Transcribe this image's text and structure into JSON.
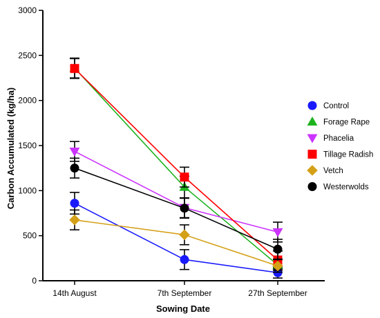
{
  "chart_data": {
    "type": "line",
    "title": "",
    "xlabel": "Sowing Date",
    "ylabel": "Carbon Accumulated (kg/ha)",
    "categories": [
      "14th August",
      "7th September",
      "27th September"
    ],
    "ylim": [
      0,
      3000
    ],
    "yticks": [
      0,
      500,
      1000,
      1500,
      2000,
      2500,
      3000
    ],
    "grid": false,
    "legend_position": "right",
    "series": [
      {
        "name": "Control",
        "color": "#1a1aff",
        "marker": "circle",
        "values": [
          860,
          235,
          90
        ],
        "errors": [
          120,
          110,
          60
        ]
      },
      {
        "name": "Forage Rape",
        "color": "#1db31d",
        "marker": "triangle-up",
        "values": [
          2360,
          1040,
          175
        ],
        "errors": [
          110,
          120,
          60
        ]
      },
      {
        "name": "Phacelia",
        "color": "#cc33ff",
        "marker": "triangle-down",
        "values": [
          1435,
          810,
          540
        ],
        "errors": [
          110,
          110,
          110
        ]
      },
      {
        "name": "Tillage Radish",
        "color": "#ff0000",
        "marker": "square",
        "values": [
          2355,
          1150,
          230
        ],
        "errors": [
          110,
          110,
          100
        ]
      },
      {
        "name": "Vetch",
        "color": "#d4a017",
        "marker": "diamond",
        "values": [
          675,
          510,
          165
        ],
        "errors": [
          110,
          110,
          70
        ]
      },
      {
        "name": "Westerwolds",
        "color": "#000000",
        "marker": "circle",
        "values": [
          1250,
          805,
          350
        ],
        "errors": [
          110,
          110,
          110
        ]
      }
    ]
  }
}
